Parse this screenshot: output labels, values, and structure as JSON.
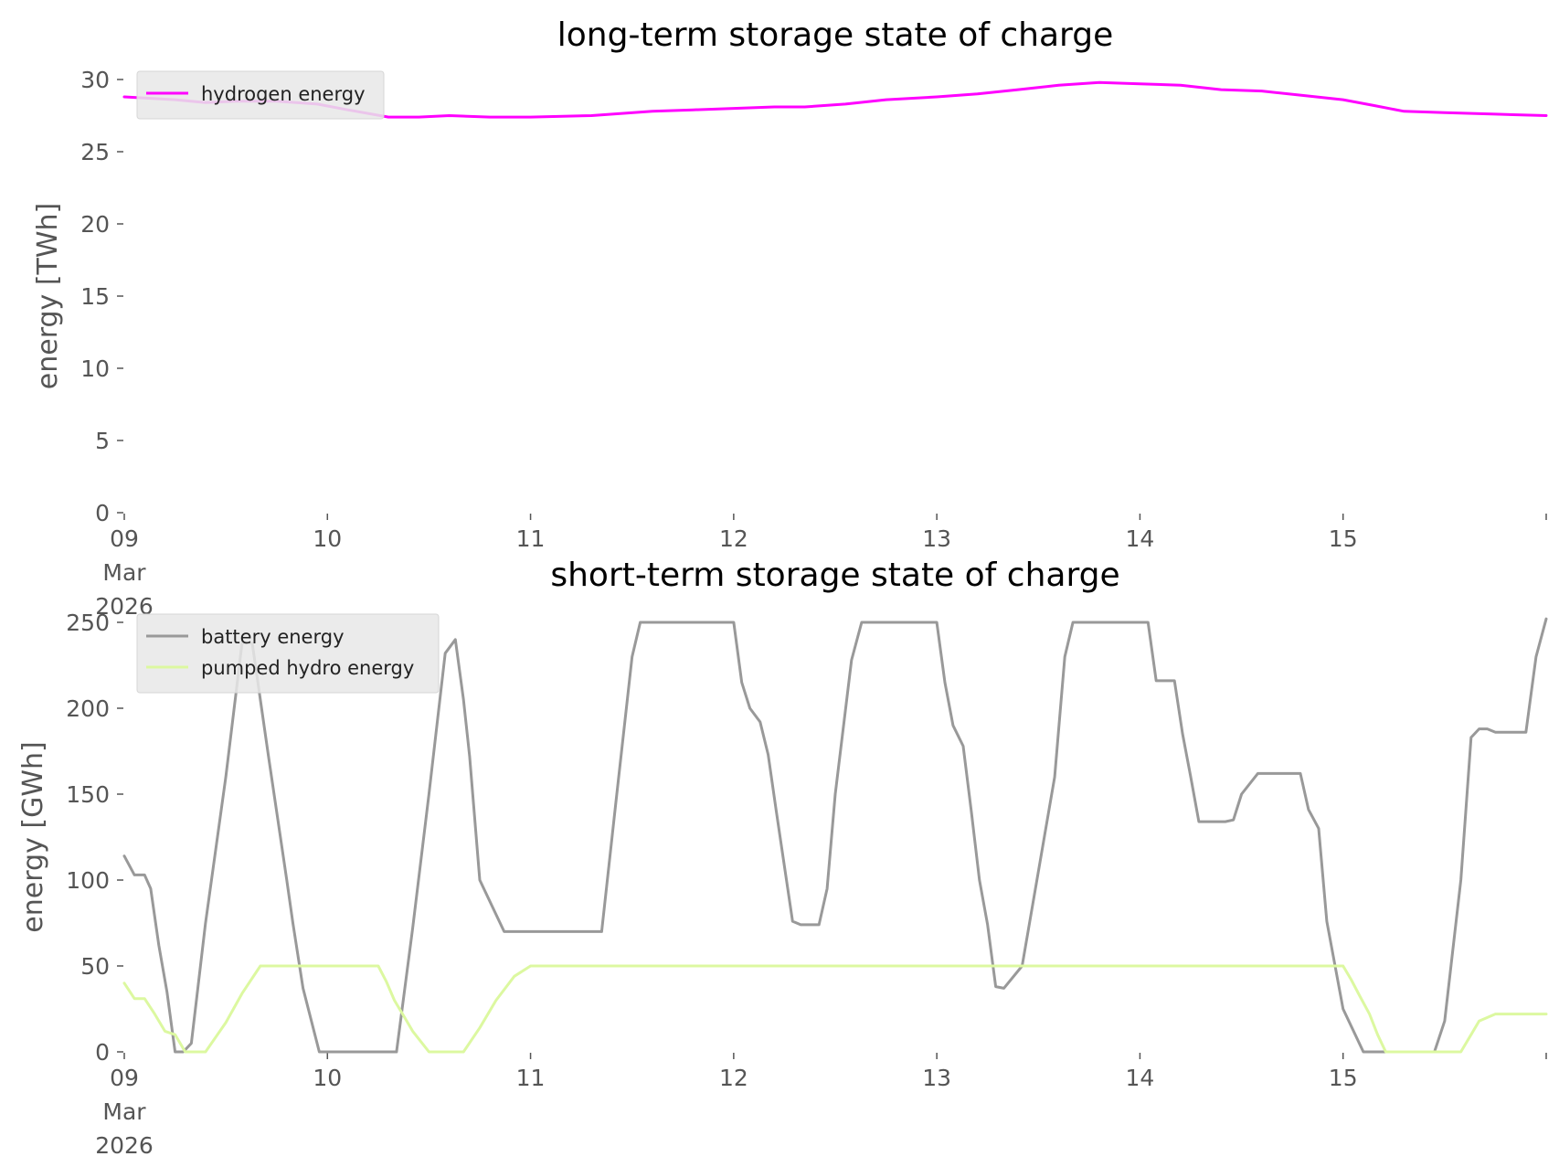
{
  "colors": {
    "hydrogen": "#ff00ff",
    "battery": "#999999",
    "pumped_hydro": "#dcf8a0",
    "legend_bg": "#e8e8e8",
    "text": "#555555"
  },
  "chart_data": [
    {
      "type": "line",
      "title": "long-term storage state of charge",
      "ylabel": "energy [TWh]",
      "xlabel": "",
      "ylim": [
        0,
        30
      ],
      "xlim": [
        0,
        7
      ],
      "x_unit": "days from 09 Mar 2026",
      "yticks": [
        0,
        5,
        10,
        15,
        20,
        25,
        30
      ],
      "ytick_labels": [
        "0",
        "5",
        "10",
        "15",
        "20",
        "25",
        "30"
      ],
      "xticks": [
        0,
        1,
        2,
        3,
        4,
        5,
        6,
        7
      ],
      "xtick_labels": [
        "09\nMar\n2026",
        "10",
        "11",
        "12",
        "13",
        "14",
        "15",
        ""
      ],
      "grid": false,
      "legend": "top-left",
      "series": [
        {
          "name": "hydrogen energy",
          "color_key": "hydrogen",
          "x": [
            0,
            0.12,
            0.25,
            0.4,
            0.55,
            0.75,
            0.95,
            1.1,
            1.3,
            1.45,
            1.6,
            1.8,
            2.0,
            2.3,
            2.6,
            2.8,
            3.0,
            3.2,
            3.35,
            3.55,
            3.75,
            4.0,
            4.2,
            4.4,
            4.6,
            4.8,
            5.0,
            5.2,
            5.4,
            5.6,
            5.8,
            6.0,
            6.15,
            6.3,
            6.5,
            6.75,
            7.0
          ],
          "y": [
            28.8,
            28.7,
            28.6,
            28.4,
            28.5,
            28.5,
            28.3,
            27.9,
            27.4,
            27.4,
            27.5,
            27.4,
            27.4,
            27.5,
            27.8,
            27.9,
            28.0,
            28.1,
            28.1,
            28.3,
            28.6,
            28.8,
            29.0,
            29.3,
            29.6,
            29.8,
            29.7,
            29.6,
            29.3,
            29.2,
            28.9,
            28.6,
            28.2,
            27.8,
            27.7,
            27.6,
            27.5
          ]
        }
      ]
    },
    {
      "type": "line",
      "title": "short-term storage state of charge",
      "ylabel": "energy [GWh]",
      "xlabel": "",
      "ylim": [
        0,
        250
      ],
      "xlim": [
        0,
        7
      ],
      "x_unit": "days from 09 Mar 2026",
      "yticks": [
        0,
        50,
        100,
        150,
        200,
        250
      ],
      "ytick_labels": [
        "0",
        "50",
        "100",
        "150",
        "200",
        "250"
      ],
      "xticks": [
        0,
        1,
        2,
        3,
        4,
        5,
        6,
        7
      ],
      "xtick_labels": [
        "09\nMar\n2026",
        "10",
        "11",
        "12",
        "13",
        "14",
        "15",
        ""
      ],
      "grid": false,
      "legend": "top-left",
      "series": [
        {
          "name": "battery energy",
          "color_key": "battery",
          "x": [
            0,
            0.05,
            0.1,
            0.13,
            0.17,
            0.21,
            0.25,
            0.29,
            0.33,
            0.4,
            0.5,
            0.58,
            0.63,
            0.67,
            0.71,
            0.8,
            0.83,
            0.88,
            0.96,
            1.1,
            1.2,
            1.3,
            1.34,
            1.42,
            1.5,
            1.58,
            1.63,
            1.67,
            1.7,
            1.75,
            1.83,
            1.87,
            1.92,
            2.0,
            2.1,
            2.2,
            2.3,
            2.35,
            2.42,
            2.5,
            2.54,
            2.58,
            2.63,
            2.67,
            2.75,
            2.83,
            2.92,
            3.0,
            3.04,
            3.08,
            3.13,
            3.17,
            3.21,
            3.25,
            3.29,
            3.33,
            3.37,
            3.42,
            3.46,
            3.5,
            3.58,
            3.63,
            3.67,
            3.75,
            3.83,
            3.92,
            4.0,
            4.04,
            4.08,
            4.13,
            4.17,
            4.21,
            4.25,
            4.29,
            4.33,
            4.42,
            4.5,
            4.58,
            4.63,
            4.67,
            4.75,
            4.83,
            4.9,
            4.95,
            5.0,
            5.04,
            5.08,
            5.13,
            5.17,
            5.21,
            5.25,
            5.29,
            5.33,
            5.38,
            5.42,
            5.46,
            5.5,
            5.58,
            5.67,
            5.71,
            5.75,
            5.79,
            5.83,
            5.88,
            5.92,
            6.0,
            6.1,
            6.2,
            6.3,
            6.4,
            6.45,
            6.5,
            6.58,
            6.63,
            6.67,
            6.71,
            6.75,
            6.83,
            6.9,
            6.95,
            7.0
          ],
          "y": [
            114,
            103,
            103,
            95,
            62,
            35,
            0,
            0,
            5,
            75,
            160,
            238,
            238,
            205,
            172,
            100,
            75,
            37,
            0,
            0,
            0,
            0,
            0,
            72,
            150,
            232,
            240,
            205,
            172,
            100,
            80,
            70,
            70,
            70,
            70,
            70,
            70,
            70,
            145,
            230,
            250,
            250,
            250,
            250,
            250,
            250,
            250,
            250,
            215,
            200,
            192,
            173,
            140,
            108,
            76,
            74,
            74,
            74,
            95,
            150,
            228,
            250,
            250,
            250,
            250,
            250,
            250,
            215,
            190,
            178,
            140,
            100,
            74,
            38,
            37,
            50,
            105,
            160,
            230,
            250,
            250,
            250,
            250,
            250,
            250,
            250,
            216,
            216,
            216,
            185,
            160,
            134,
            134,
            134,
            134,
            135,
            150,
            162,
            162,
            162,
            162,
            162,
            141,
            130,
            76,
            25,
            0,
            0,
            0,
            0,
            0,
            18,
            100,
            183,
            188,
            188,
            186,
            186,
            186,
            230,
            252
          ]
        },
        {
          "name": "pumped hydro energy",
          "color_key": "pumped_hydro",
          "x": [
            0,
            0.05,
            0.1,
            0.15,
            0.2,
            0.25,
            0.3,
            0.35,
            0.4,
            0.5,
            0.58,
            0.67,
            0.75,
            0.83,
            0.92,
            0.96,
            1.04,
            1.13,
            1.17,
            1.21,
            1.25,
            1.29,
            1.33,
            1.38,
            1.42,
            1.5,
            1.58,
            1.67,
            1.75,
            1.83,
            1.92,
            2.0,
            2.5,
            2.96,
            3.0,
            3.04,
            3.08,
            3.13,
            3.17,
            3.21,
            3.25,
            3.29,
            3.33,
            3.37,
            3.42,
            3.46,
            3.5,
            3.58,
            3.63,
            3.67,
            3.75,
            3.83,
            3.92,
            4.0,
            4.04,
            4.08,
            4.13,
            4.17,
            4.21,
            4.25,
            4.29,
            4.33,
            4.38,
            4.42,
            4.46,
            4.5,
            4.58,
            4.63,
            4.67,
            5.0,
            5.5,
            5.83,
            5.88,
            5.96,
            6.0,
            6.04,
            6.08,
            6.13,
            6.17,
            6.21,
            6.25,
            6.3,
            6.35,
            6.42,
            6.46,
            6.5,
            6.54,
            6.58,
            6.63,
            6.67,
            6.75,
            6.83,
            6.92,
            7.0
          ],
          "y": [
            40,
            31,
            31,
            22,
            12,
            10,
            0,
            0,
            0,
            17,
            34,
            50,
            50,
            50,
            50,
            50,
            50,
            50,
            50,
            50,
            50,
            41,
            30,
            20,
            12,
            0,
            0,
            0,
            14,
            30,
            44,
            50,
            50,
            50,
            50,
            50,
            50,
            50,
            50,
            50,
            50,
            50,
            50,
            50,
            50,
            50,
            50,
            50,
            50,
            50,
            50,
            50,
            50,
            50,
            50,
            50,
            50,
            50,
            50,
            50,
            50,
            50,
            50,
            50,
            50,
            50,
            50,
            50,
            50,
            50,
            50,
            50,
            50,
            50,
            50,
            42,
            33,
            22,
            10,
            0,
            0,
            0,
            0,
            0,
            0,
            0,
            0,
            0,
            10,
            18,
            22,
            22,
            22,
            22
          ]
        }
      ]
    }
  ]
}
